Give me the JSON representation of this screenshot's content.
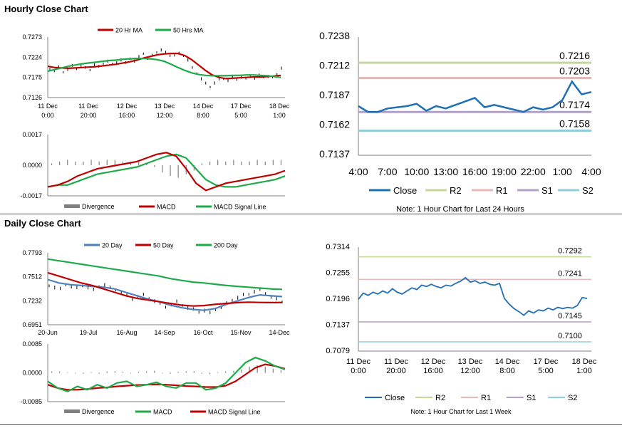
{
  "sections": {
    "hourly_title": "Hourly Close Chart",
    "daily_title": "Daily Close Chart"
  },
  "colors": {
    "red": "#c00000",
    "green": "#1faa4a",
    "blue": "#4f81bd",
    "close_blue": "#1f6fb5",
    "r2": "#c4d79b",
    "r1": "#e6b8b7",
    "s1": "#b1a0c7",
    "s2": "#92cddc",
    "divergence": "#808080",
    "price": "#000000"
  },
  "chart_data": [
    {
      "id": "hourly_price",
      "type": "line",
      "legend": [
        "20 Hr MA",
        "50 Hrs MA"
      ],
      "ylim": [
        0.7126,
        0.7273
      ],
      "yticks": [
        "0.7273",
        "0.7224",
        "0.7175",
        "0.7126"
      ],
      "xticks": [
        [
          "11 Dec",
          "0:00"
        ],
        [
          "11 Dec",
          "20:00"
        ],
        [
          "12 Dec",
          "16:00"
        ],
        [
          "13 Dec",
          "12:00"
        ],
        [
          "14 Dec",
          "8:00"
        ],
        [
          "17 Dec",
          "5:00"
        ],
        [
          "18 Dec",
          "1:00"
        ]
      ],
      "price": [
        0.7196,
        0.7192,
        0.72,
        0.7188,
        0.7195,
        0.7203,
        0.7196,
        0.7205,
        0.7198,
        0.7193,
        0.7206,
        0.7201,
        0.7209,
        0.7215,
        0.7206,
        0.7212,
        0.7218,
        0.721,
        0.7221,
        0.7215,
        0.7225,
        0.7233,
        0.7222,
        0.7228,
        0.7236,
        0.7242,
        0.7235,
        0.7228,
        0.723,
        0.7233,
        0.7228,
        0.7218,
        0.7198,
        0.7185,
        0.7172,
        0.716,
        0.7152,
        0.7162,
        0.717,
        0.7172,
        0.7168,
        0.7174,
        0.717,
        0.7176,
        0.7172,
        0.7178,
        0.7174,
        0.718,
        0.7176,
        0.7178,
        0.7175,
        0.7183,
        0.7198
      ],
      "series": [
        {
          "name": "20 Hr MA",
          "color": "#c00000",
          "values": [
            0.7202,
            0.7199,
            0.7198,
            0.7197,
            0.7198,
            0.7199,
            0.72,
            0.7201,
            0.7203,
            0.7205,
            0.7207,
            0.721,
            0.7213,
            0.7217,
            0.7222,
            0.7226,
            0.723,
            0.7232,
            0.7233,
            0.7233,
            0.7228,
            0.7218,
            0.7205,
            0.7192,
            0.7181,
            0.7175,
            0.7172,
            0.7173,
            0.7174,
            0.7175,
            0.7176,
            0.7176,
            0.7177,
            0.7178,
            0.718
          ]
        },
        {
          "name": "50 Hrs MA",
          "color": "#1faa4a",
          "values": [
            0.719,
            0.7194,
            0.7198,
            0.7202,
            0.7205,
            0.7208,
            0.721,
            0.7212,
            0.7214,
            0.7216,
            0.7217,
            0.7219,
            0.722,
            0.7221,
            0.7221,
            0.722,
            0.7218,
            0.7214,
            0.7207,
            0.7199,
            0.7192,
            0.7186,
            0.7182,
            0.718,
            0.7179,
            0.7179,
            0.7179,
            0.718,
            0.718,
            0.7181,
            0.7181,
            0.718,
            0.7179,
            0.7177,
            0.7175
          ]
        }
      ]
    },
    {
      "id": "hourly_macd",
      "type": "line",
      "legend": [
        "Divergence",
        "MACD",
        "MACD Signal Line"
      ],
      "ylim": [
        -0.0017,
        0.0017
      ],
      "yticks": [
        "0.0017",
        "0.0000",
        "-0.0017"
      ],
      "series": [
        {
          "name": "MACD",
          "color": "#c00000",
          "values": [
            -0.0012,
            -0.0011,
            -0.0009,
            -0.0006,
            -0.0004,
            -0.0002,
            -0.0001,
            0.0,
            0.0001,
            0.0002,
            0.0004,
            0.0006,
            0.0007,
            0.0005,
            -0.0002,
            -0.001,
            -0.0014,
            -0.0012,
            -0.001,
            -0.0009,
            -0.0008,
            -0.0007,
            -0.0006,
            -0.0005,
            -0.0003
          ]
        },
        {
          "name": "MACD Signal Line",
          "color": "#1faa4a",
          "values": [
            -0.0012,
            -0.0011,
            -0.0011,
            -0.0009,
            -0.0007,
            -0.0005,
            -0.0004,
            -0.0003,
            -0.0002,
            -0.0001,
            0.0001,
            0.0003,
            0.0005,
            0.0006,
            0.0004,
            -0.0002,
            -0.0008,
            -0.0011,
            -0.0012,
            -0.0012,
            -0.0011,
            -0.001,
            -0.0009,
            -0.0008,
            -0.0006
          ]
        }
      ],
      "divergence": [
        0.0001,
        0.0002,
        0.0003,
        0.0002,
        0.0002,
        0.0003,
        0.0002,
        0.0003,
        0.0003,
        0.0002,
        0.0002,
        0.0002,
        0.0001,
        -0.0001,
        -0.0004,
        -0.0006,
        -0.0007,
        -0.0005,
        -0.0003,
        0.0001,
        0.0002,
        0.0003,
        0.0002,
        0.0003,
        0.0002,
        0.0002,
        0.0003,
        0.0002,
        0.0003,
        0.0003
      ]
    },
    {
      "id": "hourly_pivot",
      "type": "line",
      "ylim": [
        0.7137,
        0.7238
      ],
      "yticks": [
        "0.7238",
        "0.7212",
        "0.7187",
        "0.7162",
        "0.7137"
      ],
      "xticks": [
        "4:00",
        "7:00",
        "10:00",
        "13:00",
        "16:00",
        "19:00",
        "22:00",
        "1:00",
        "4:00"
      ],
      "legend": [
        "Close",
        "R2",
        "R1",
        "S1",
        "S2"
      ],
      "levels": {
        "R2": 0.7216,
        "R1": 0.7203,
        "S1": 0.7174,
        "S2": 0.7158
      },
      "level_labels": {
        "R2": "0.7216",
        "R1": "0.7203",
        "S1": "0.7174",
        "S2": "0.7158"
      },
      "close": [
        0.7179,
        0.7174,
        0.7174,
        0.7177,
        0.7178,
        0.7179,
        0.7181,
        0.7175,
        0.7179,
        0.7177,
        0.718,
        0.7183,
        0.7186,
        0.7178,
        0.718,
        0.7178,
        0.7176,
        0.7174,
        0.7178,
        0.7176,
        0.7178,
        0.7184,
        0.72,
        0.7189,
        0.7191
      ],
      "note": "Note: 1 Hour Chart for Last 24 Hours"
    },
    {
      "id": "daily_price",
      "type": "line",
      "legend": [
        "20 Day",
        "50 Day",
        "200 Day"
      ],
      "ylim": [
        0.6951,
        0.7793
      ],
      "yticks": [
        "0.7793",
        "0.7512",
        "0.7232",
        "0.6951"
      ],
      "xticks": [
        "20-Jun",
        "19-Jul",
        "16-Aug",
        "14-Sep",
        "16-Oct",
        "15-Nov",
        "14-Dec"
      ],
      "price": [
        0.741,
        0.739,
        0.737,
        0.742,
        0.74,
        0.738,
        0.741,
        0.739,
        0.736,
        0.74,
        0.742,
        0.738,
        0.736,
        0.733,
        0.729,
        0.725,
        0.728,
        0.73,
        0.726,
        0.723,
        0.72,
        0.716,
        0.719,
        0.722,
        0.718,
        0.715,
        0.713,
        0.71,
        0.712,
        0.709,
        0.713,
        0.716,
        0.72,
        0.724,
        0.727,
        0.73,
        0.731,
        0.734,
        0.736,
        0.732,
        0.728,
        0.725,
        0.722
      ],
      "series": [
        {
          "name": "20 Day",
          "color": "#4f81bd",
          "values": [
            0.748,
            0.744,
            0.742,
            0.741,
            0.74,
            0.739,
            0.737,
            0.733,
            0.729,
            0.725,
            0.722,
            0.718,
            0.715,
            0.713,
            0.712,
            0.714,
            0.719,
            0.723,
            0.727,
            0.73,
            0.729,
            0.728
          ]
        },
        {
          "name": "50 Day",
          "color": "#c00000",
          "values": [
            0.756,
            0.752,
            0.748,
            0.744,
            0.741,
            0.737,
            0.733,
            0.729,
            0.726,
            0.724,
            0.722,
            0.72,
            0.718,
            0.717,
            0.7175,
            0.719,
            0.72,
            0.721,
            0.7215,
            0.7212,
            0.721,
            0.7212
          ]
        },
        {
          "name": "200 Day",
          "color": "#1faa4a",
          "values": [
            0.772,
            0.77,
            0.768,
            0.766,
            0.764,
            0.762,
            0.76,
            0.758,
            0.756,
            0.754,
            0.752,
            0.749,
            0.747,
            0.745,
            0.744,
            0.7425,
            0.741,
            0.74,
            0.739,
            0.738,
            0.737,
            0.7365
          ]
        }
      ]
    },
    {
      "id": "daily_macd",
      "type": "line",
      "legend": [
        "Divergence",
        "MACD",
        "MACD Signal Line"
      ],
      "ylim": [
        -0.0085,
        0.0085
      ],
      "yticks": [
        "0.0085",
        "0.0000",
        "-0.0085"
      ],
      "series": [
        {
          "name": "MACD",
          "color": "#1faa4a",
          "values": [
            -0.0025,
            -0.0045,
            -0.0055,
            -0.004,
            -0.005,
            -0.0035,
            -0.0045,
            -0.003,
            -0.0025,
            -0.004,
            -0.0035,
            -0.0028,
            -0.004,
            -0.0045,
            -0.003,
            -0.003,
            -0.005,
            -0.0045,
            -0.003,
            0.0,
            0.003,
            0.0045,
            0.0035,
            0.002,
            0.001
          ]
        },
        {
          "name": "MACD Signal Line",
          "color": "#c00000",
          "values": [
            -0.0035,
            -0.0045,
            -0.005,
            -0.005,
            -0.0048,
            -0.0045,
            -0.0043,
            -0.004,
            -0.0038,
            -0.0036,
            -0.0035,
            -0.0034,
            -0.0035,
            -0.0037,
            -0.0039,
            -0.004,
            -0.0042,
            -0.0042,
            -0.0038,
            -0.0025,
            -0.0005,
            0.0015,
            0.0025,
            0.002,
            0.0012
          ]
        }
      ],
      "divergence": [
        0.0004,
        0.0004,
        0.0002,
        -0.0002,
        -0.0003,
        0.0002,
        -0.0003,
        0.0004,
        0.0005,
        0.0003,
        -0.0002,
        0.0003,
        0.0004,
        0.0006,
        -0.0002,
        -0.0003,
        0.0003,
        0.0004,
        0.0005,
        -0.0003,
        -0.0004,
        0.0002,
        0.0004,
        0.0006,
        0.001,
        0.0018,
        0.0022,
        0.0018,
        0.0012,
        0.0008
      ]
    },
    {
      "id": "daily_pivot",
      "type": "line",
      "ylim": [
        0.7079,
        0.7314
      ],
      "yticks": [
        "0.7314",
        "0.7255",
        "0.7196",
        "0.7137",
        "0.7079"
      ],
      "xticks": [
        [
          "11 Dec",
          "0:00"
        ],
        [
          "11 Dec",
          "20:00"
        ],
        [
          "12 Dec",
          "16:00"
        ],
        [
          "13 Dec",
          "12:00"
        ],
        [
          "14 Dec",
          "8:00"
        ],
        [
          "17 Dec",
          "5:00"
        ],
        [
          "18 Dec",
          "1:00"
        ]
      ],
      "legend": [
        "Close",
        "R2",
        "R1",
        "S1",
        "S2"
      ],
      "levels": {
        "R2": 0.7292,
        "R1": 0.7241,
        "S1": 0.7145,
        "S2": 0.71
      },
      "level_labels": {
        "R2": "0.7292",
        "R1": "0.7241",
        "S1": "0.7145",
        "S2": "0.7100"
      },
      "close": [
        0.7196,
        0.721,
        0.7205,
        0.7212,
        0.7208,
        0.7215,
        0.721,
        0.722,
        0.7212,
        0.7208,
        0.7215,
        0.7222,
        0.7218,
        0.7228,
        0.7225,
        0.723,
        0.7225,
        0.7222,
        0.7228,
        0.7226,
        0.7232,
        0.7237,
        0.7245,
        0.7235,
        0.7238,
        0.7232,
        0.7235,
        0.723,
        0.7228,
        0.7232,
        0.7198,
        0.7185,
        0.7175,
        0.7168,
        0.716,
        0.717,
        0.7165,
        0.7172,
        0.717,
        0.7176,
        0.7172,
        0.7178,
        0.7175,
        0.7178,
        0.7176,
        0.7182,
        0.72,
        0.7198
      ],
      "note": "Note: 1 Hour Chart for Last 1 Week"
    }
  ]
}
